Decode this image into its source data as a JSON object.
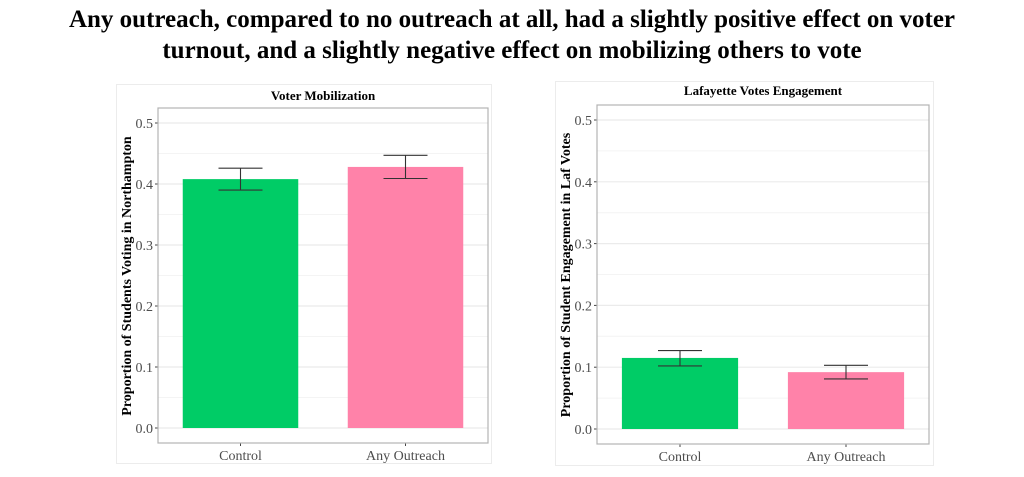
{
  "title": "Any outreach, compared to no outreach at all, had a slightly positive effect on voter turnout, and a slightly negative effect on mobilizing others to vote",
  "title_lines": [
    "Any outreach, compared to no outreach at all, had a slightly positive effect on voter",
    "turnout, and a slightly negative effect on mobilizing others to vote"
  ],
  "chart_data": [
    {
      "type": "bar",
      "title": "Voter Mobilization",
      "xlabel": "",
      "ylabel": "Proportion of Students Voting in Northampton",
      "categories": [
        "Control",
        "Any Outreach"
      ],
      "values": [
        0.408,
        0.428
      ],
      "error_low": [
        0.39,
        0.409
      ],
      "error_high": [
        0.426,
        0.447
      ],
      "colors": [
        "#00CC66",
        "#FF82A9"
      ],
      "ylim": [
        0,
        0.52
      ],
      "yticks": [
        0.0,
        0.1,
        0.2,
        0.3,
        0.4,
        0.5
      ],
      "ytick_labels": [
        "0.0",
        "0.1",
        "0.2",
        "0.3",
        "0.4",
        "0.5"
      ],
      "grid": true
    },
    {
      "type": "bar",
      "title": "Lafayette Votes Engagement",
      "xlabel": "",
      "ylabel": "Proportion of Student Engagement in Laf Votes",
      "categories": [
        "Control",
        "Any Outreach"
      ],
      "values": [
        0.115,
        0.092
      ],
      "error_low": [
        0.102,
        0.081
      ],
      "error_high": [
        0.127,
        0.103
      ],
      "colors": [
        "#00CC66",
        "#FF82A9"
      ],
      "ylim": [
        0,
        0.52
      ],
      "yticks": [
        0.0,
        0.1,
        0.2,
        0.3,
        0.4,
        0.5
      ],
      "ytick_labels": [
        "0.0",
        "0.1",
        "0.2",
        "0.3",
        "0.4",
        "0.5"
      ],
      "grid": true
    }
  ]
}
